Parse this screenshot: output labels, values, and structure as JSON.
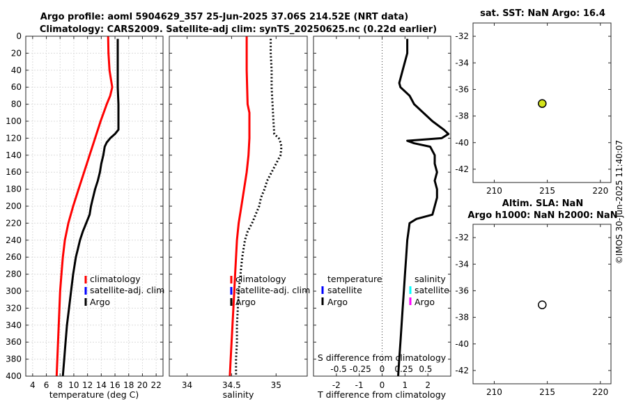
{
  "chart_data": [
    {
      "type": "line",
      "panel": "temperature",
      "title_line1": "Argo profile: aoml 5904629_357 25-Jun-2025 37.06S 214.52E (NRT data)",
      "title_line2": "Climatology: CARS2009. Satellite-adj clim: synTS_20250625.nc (0.22d earlier)",
      "xlabel": "temperature (deg C)",
      "xlim": [
        3,
        23
      ],
      "ylim": [
        0,
        400
      ],
      "xticks": [
        4,
        6,
        8,
        10,
        12,
        14,
        16,
        18,
        20,
        22
      ],
      "yticks": [
        0,
        20,
        40,
        60,
        80,
        100,
        120,
        140,
        160,
        180,
        200,
        220,
        240,
        260,
        280,
        300,
        320,
        340,
        360,
        380,
        400
      ],
      "legend": [
        "climatology",
        "satellite-adj. clim",
        "Argo"
      ],
      "series": [
        {
          "name": "climatology",
          "color": "#ff0000",
          "style": "solid",
          "depth": [
            0,
            20,
            40,
            50,
            60,
            70,
            80,
            100,
            120,
            140,
            160,
            180,
            200,
            220,
            240,
            260,
            280,
            300,
            320,
            340,
            360,
            380,
            400
          ],
          "values": [
            15.0,
            15.05,
            15.2,
            15.4,
            15.6,
            15.3,
            14.8,
            13.9,
            13.1,
            12.3,
            11.5,
            10.7,
            9.9,
            9.2,
            8.7,
            8.4,
            8.2,
            8.0,
            7.9,
            7.8,
            7.7,
            7.6,
            7.5
          ]
        },
        {
          "name": "Argo",
          "color": "#000000",
          "style": "solid",
          "depth": [
            3,
            20,
            40,
            60,
            80,
            100,
            110,
            115,
            120,
            125,
            130,
            140,
            150,
            160,
            170,
            180,
            190,
            200,
            210,
            220,
            230,
            240,
            250,
            260,
            280,
            300,
            320,
            340,
            360,
            380,
            400
          ],
          "values": [
            16.4,
            16.4,
            16.4,
            16.4,
            16.5,
            16.5,
            16.5,
            16.0,
            15.3,
            14.8,
            14.5,
            14.3,
            14.0,
            13.8,
            13.5,
            13.1,
            12.8,
            12.5,
            12.3,
            11.8,
            11.3,
            10.9,
            10.6,
            10.3,
            9.9,
            9.6,
            9.3,
            9.0,
            8.8,
            8.6,
            8.4
          ]
        }
      ]
    },
    {
      "type": "line",
      "panel": "salinity",
      "xlabel": "salinity",
      "xlim": [
        33.8,
        35.35
      ],
      "ylim": [
        0,
        400
      ],
      "xticks": [
        34,
        34.5,
        35
      ],
      "legend": [
        "climatology",
        "satellite-adj. clim",
        "Argo"
      ],
      "series": [
        {
          "name": "climatology",
          "color": "#ff0000",
          "style": "solid",
          "depth": [
            0,
            40,
            80,
            90,
            100,
            120,
            140,
            160,
            180,
            200,
            220,
            240,
            260,
            280,
            300,
            320,
            340,
            360,
            380,
            400
          ],
          "values": [
            34.67,
            34.67,
            34.68,
            34.7,
            34.7,
            34.7,
            34.69,
            34.67,
            34.64,
            34.61,
            34.58,
            34.56,
            34.55,
            34.54,
            34.53,
            34.52,
            34.51,
            34.5,
            34.49,
            34.48
          ]
        },
        {
          "name": "Argo",
          "color": "#000000",
          "style": "dotted",
          "depth": [
            3,
            20,
            40,
            60,
            80,
            100,
            115,
            120,
            125,
            130,
            140,
            150,
            160,
            170,
            180,
            190,
            200,
            210,
            220,
            230,
            240,
            260,
            280,
            300,
            320,
            340,
            360,
            380,
            400
          ],
          "values": [
            34.94,
            34.94,
            34.95,
            34.95,
            34.96,
            34.97,
            34.98,
            35.03,
            35.05,
            35.06,
            35.05,
            35.0,
            34.95,
            34.9,
            34.87,
            34.83,
            34.81,
            34.77,
            34.73,
            34.68,
            34.65,
            34.62,
            34.6,
            34.58,
            34.57,
            34.56,
            34.56,
            34.55,
            34.55
          ]
        }
      ]
    },
    {
      "type": "line",
      "panel": "difference",
      "xlabel": "T difference from climatology",
      "xlabel2": "S difference from climatology",
      "xlim": [
        -3,
        3
      ],
      "ylim": [
        0,
        400
      ],
      "xticks": [
        -2,
        -1,
        0,
        1,
        2
      ],
      "xticks2": [
        "-0.5",
        "-0.25",
        "0",
        "0.25",
        "0.5"
      ],
      "legend_left_title": "temperature",
      "legend_right_title": "salinity",
      "legend_left": [
        "satellite",
        "Argo"
      ],
      "legend_right": [
        "satellite",
        "Argo"
      ],
      "series": [
        {
          "name": "T difference Argo",
          "color": "#000000",
          "style": "solid",
          "depth": [
            3,
            20,
            40,
            55,
            60,
            70,
            80,
            100,
            110,
            115,
            120,
            123,
            126,
            130,
            140,
            150,
            160,
            170,
            180,
            190,
            200,
            210,
            215,
            220,
            230,
            240,
            260,
            280,
            300,
            320,
            340,
            360,
            380,
            400
          ],
          "values": [
            1.1,
            1.1,
            0.9,
            0.75,
            0.8,
            1.2,
            1.4,
            2.2,
            2.7,
            2.9,
            2.6,
            1.1,
            1.4,
            2.1,
            2.3,
            2.3,
            2.4,
            2.3,
            2.4,
            2.4,
            2.3,
            2.2,
            1.5,
            1.2,
            1.15,
            1.1,
            1.05,
            1.0,
            0.95,
            0.9,
            0.85,
            0.8,
            0.75,
            0.7
          ]
        }
      ]
    },
    {
      "type": "scatter",
      "panel": "map-sst",
      "title": "sat. SST: NaN Argo: 16.4",
      "xlim": [
        208,
        221
      ],
      "ylim": [
        -43,
        -31
      ],
      "xticks": [
        210,
        215,
        220
      ],
      "yticks": [
        -32,
        -34,
        -36,
        -38,
        -40,
        -42
      ],
      "points": [
        {
          "x": 214.52,
          "y": -37.06,
          "color": "#d4e41a"
        }
      ]
    },
    {
      "type": "scatter",
      "panel": "map-sla",
      "title_line1": "Altim. SLA: NaN",
      "title_line2": "Argo h1000: NaN h2000: NaN",
      "xlim": [
        208,
        221
      ],
      "ylim": [
        -43,
        -31
      ],
      "xticks": [
        210,
        215,
        220
      ],
      "yticks": [
        -32,
        -34,
        -36,
        -38,
        -40,
        -42
      ],
      "points": [
        {
          "x": 214.52,
          "y": -37.06,
          "color": "#ffffff"
        }
      ]
    }
  ],
  "stamp": "©IMOS 30-Jun-2025 11:40:07",
  "colors": {
    "climatology": "#ff0000",
    "satellite": "#0000ff",
    "argo": "#000000",
    "satellite_s": "#00ffff",
    "argo_s": "#ff00ff"
  }
}
